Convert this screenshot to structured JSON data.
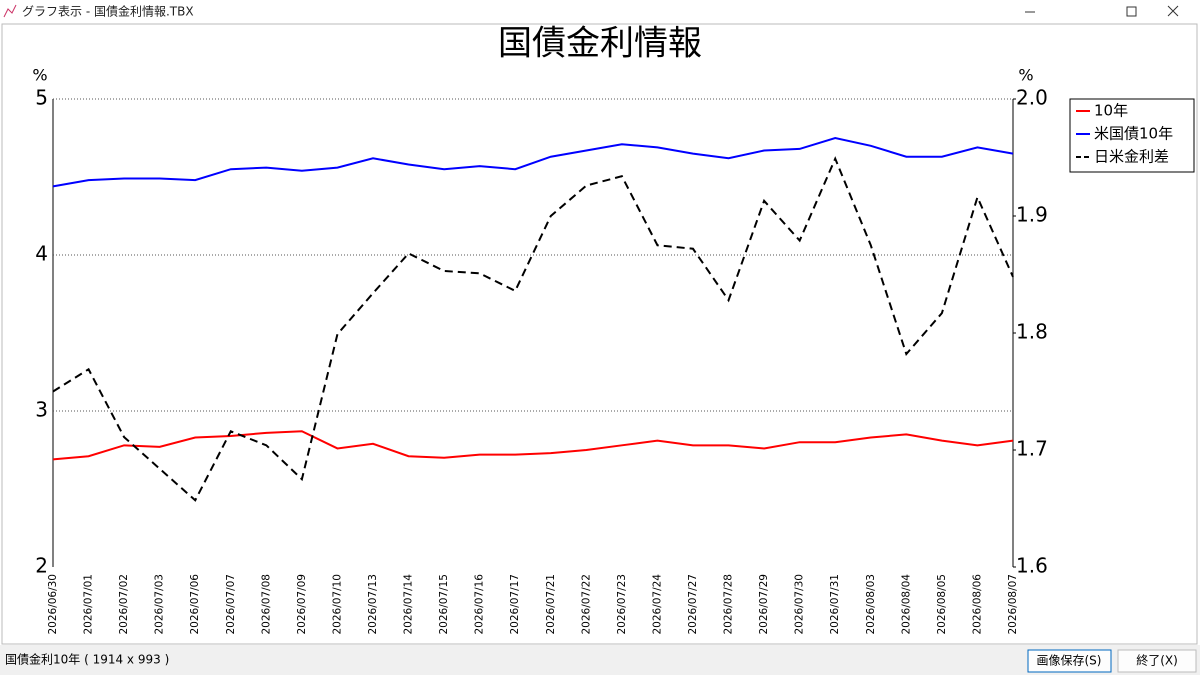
{
  "window": {
    "title": "グラフ表示 - 国債金利情報.TBX"
  },
  "chart_data": {
    "type": "line",
    "title": "国債金利情報",
    "ylabel": "%",
    "y2label": "%",
    "categories": [
      "2026/06/30",
      "2026/07/01",
      "2026/07/02",
      "2026/07/03",
      "2026/07/06",
      "2026/07/07",
      "2026/07/08",
      "2026/07/09",
      "2026/07/10",
      "2026/07/13",
      "2026/07/14",
      "2026/07/15",
      "2026/07/16",
      "2026/07/17",
      "2026/07/21",
      "2026/07/22",
      "2026/07/23",
      "2026/07/24",
      "2026/07/27",
      "2026/07/28",
      "2026/07/29",
      "2026/07/30",
      "2026/07/31",
      "2026/08/03",
      "2026/08/04",
      "2026/08/05",
      "2026/08/06",
      "2026/08/07"
    ],
    "series": [
      {
        "name": "10年",
        "color": "#ff0000",
        "style": "solid",
        "values": [
          2.69,
          2.71,
          2.78,
          2.77,
          2.83,
          2.84,
          2.86,
          2.87,
          2.76,
          2.79,
          2.71,
          2.7,
          2.72,
          2.72,
          2.73,
          2.75,
          2.78,
          2.81,
          2.78,
          2.78,
          2.76,
          2.8,
          2.8,
          2.83,
          2.85,
          2.81,
          2.78,
          2.81
        ]
      },
      {
        "name": "米国債10年",
        "color": "#0000ff",
        "style": "solid",
        "values": [
          4.44,
          4.48,
          4.49,
          4.49,
          4.48,
          4.55,
          4.56,
          4.54,
          4.56,
          4.62,
          4.58,
          4.55,
          4.57,
          4.55,
          4.63,
          4.67,
          4.71,
          4.69,
          4.65,
          4.62,
          4.67,
          4.68,
          4.75,
          4.7,
          4.63,
          4.63,
          4.69,
          4.65
        ]
      },
      {
        "name": "日米金利差",
        "color": "#000000",
        "style": "dashed",
        "axis": "y2",
        "values": [
          1.75,
          1.769,
          1.711,
          1.684,
          1.657,
          1.716,
          1.704,
          1.675,
          1.799,
          1.834,
          1.868,
          1.853,
          1.851,
          1.836,
          1.9,
          1.926,
          1.934,
          1.875,
          1.872,
          1.828,
          1.913,
          1.879,
          1.949,
          1.875,
          1.782,
          1.817,
          1.916,
          1.848
        ]
      }
    ],
    "ylim": [
      2,
      5
    ],
    "yticks": [
      5,
      4,
      3,
      2
    ],
    "y2lim": [
      1.6,
      2
    ],
    "y2ticks": [
      {
        "value": 2,
        "label": "2.0"
      },
      1.9,
      1.8,
      1.7,
      1.6
    ],
    "grid": true,
    "legend": "right"
  },
  "status": {
    "text": "国債金利10年 ( 1914 x 993 )",
    "buttons": [
      "画像保存(S)",
      "終了(X)"
    ]
  }
}
